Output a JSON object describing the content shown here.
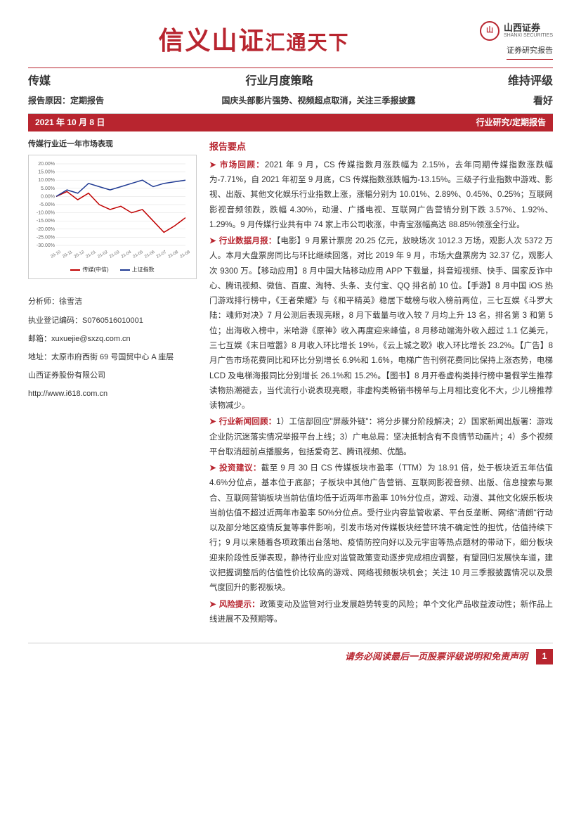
{
  "header": {
    "banner_main": "信义山证",
    "banner_sub": "汇通天下",
    "logo_cn": "山西证券",
    "logo_en": "SHANXI SECURITIES",
    "report_label": "证券研究报告"
  },
  "title_row": {
    "category": "传媒",
    "mid": "行业月度策略",
    "rating": "维持评级"
  },
  "subtitle_row": {
    "reason": "报告原因：定期报告",
    "subtitle": "国庆头部影片强势、视频超点取消，关注三季报披露",
    "outlook": "看好"
  },
  "redbar": {
    "date": "2021 年 10 月 8 日",
    "type": "行业研究/定期报告"
  },
  "sidebar": {
    "chart_title": "传媒行业近一年市场表现",
    "chart": {
      "type": "line",
      "y_ticks": [
        "20.00%",
        "15.00%",
        "10.00%",
        "5.00%",
        "0.00%",
        "-5.00%",
        "-10.00%",
        "-15.00%",
        "-20.00%",
        "-25.00%",
        "-30.00%"
      ],
      "x_ticks": [
        "20-10",
        "20-11",
        "20-12",
        "21-01",
        "21-02",
        "21-03",
        "21-04",
        "21-05",
        "21-06",
        "21-07",
        "21-08",
        "21-09"
      ],
      "series": [
        {
          "name": "传媒(中信)",
          "color": "#c00000",
          "data": [
            0,
            3,
            -2,
            2,
            -5,
            -8,
            -6,
            -10,
            -8,
            -15,
            -22,
            -18,
            -13
          ]
        },
        {
          "name": "上证指数",
          "color": "#1f3a93",
          "data": [
            0,
            4,
            2,
            8,
            6,
            4,
            6,
            8,
            10,
            6,
            8,
            9,
            10
          ]
        }
      ],
      "y_min": -30,
      "y_max": 20,
      "grid_color": "#dddddd",
      "background": "#ffffff",
      "axis_fontsize": 7
    },
    "legend_media": "传媒(中信)",
    "legend_index": "上证指数",
    "analyst_name_label": "分析师：",
    "analyst_name": "徐雪洁",
    "license_label": "执业登记编码：",
    "license": "S0760516010001",
    "email_label": "邮箱：",
    "email": "xuxuejie@sxzq.com.cn",
    "address_label": "地址：",
    "address": "太原市府西街 69 号国贸中心 A 座层",
    "company": "山西证券股份有限公司",
    "website": "http://www.i618.com.cn"
  },
  "main": {
    "section_title": "报告要点",
    "points": [
      {
        "label": "市场回顾：",
        "text": "2021 年 9 月，CS 传媒指数月涨跌幅为 2.15%，去年同期传媒指数涨跌幅为-7.71%，自 2021 年初至 9 月底，CS 传媒指数涨跌幅为-13.15%。三级子行业指数中游戏、影视、出版、其他文化娱乐行业指数上涨，涨幅分别为 10.01%、2.89%、0.45%、0.25%；互联网影视音频领跌，跌幅 4.30%，动漫、广播电视、互联网广告营销分别下跌 3.57%、1.92%、1.29%。9 月传媒行业共有中 74 家上市公司收涨，中青宝涨幅高达 88.85%领涨全行业。"
      },
      {
        "label": "行业数据月报：",
        "text": "【电影】9 月累计票房 20.25 亿元，放映场次 1012.3 万场，观影人次 5372 万人。本月大盘票房同比与环比继续回落，对比 2019 年 9 月，市场大盘票房为 32.37 亿，观影人次 9300 万。【移动应用】8 月中国大陆移动应用 APP 下载量，抖音短视频、快手、国家反诈中心、腾讯视频、微信、百度、淘特、头条、支付宝、QQ 排名前 10 位。【手游】8 月中国 iOS 热门游戏排行榜中，《王者荣耀》与《和平精英》稳居下载榜与收入榜前两位，三七互娱《斗罗大陆：魂师对决》7 月公测后表现亮眼，8 月下载量与收入较 7 月均上升 13 名，排名第 3 和第 5 位；出海收入榜中，米哈游《原神》收入再度迎来峰值，8 月移动端海外收入超过 1.1 亿美元，三七互娱《末日喧嚣》8 月收入环比增长 19%，《云上城之歌》收入环比增长 23.2%。【广告】8 月广告市场花费同比和环比分别增长 6.9%和 1.6%，电梯广告刊例花费同比保持上涨态势，电梯 LCD 及电梯海报同比分别增长 26.1%和 15.2%。【图书】8 月开卷虚构类排行榜中暑假学生推荐读物热潮褪去，当代流行小说表现亮眼，非虚构类畅销书榜单与上月相比变化不大，少儿榜推荐读物减少。"
      },
      {
        "label": "行业新闻回顾：",
        "text": "1）工信部回应\"屏蔽外链\"：将分步骤分阶段解决；2）国家新闻出版署：游戏企业防沉迷落实情况举报平台上线；3）广电总局：坚决抵制含有不良情节动画片；4）多个视频平台取消超前点播服务，包括爱奇艺、腾讯视频、优酷。"
      },
      {
        "label": "投资建议：",
        "text": "截至 9 月 30 日 CS 传媒板块市盈率（TTM）为 18.91 倍，处于板块近五年估值 4.6%分位点，基本位于底部；子板块中其他广告营销、互联网影视音频、出版、信息搜索与聚合、互联网营销板块当前估值均低于近两年市盈率 10%分位点，游戏、动漫、其他文化娱乐板块当前估值不超过近两年市盈率 50%分位点。受行业内容监管收紧、平台反垄断、网络\"清朗\"行动以及部分地区疫情反复等事件影响，引发市场对传媒板块经营环境不确定性的担忧，估值持续下行；9 月以来随着各项政策出台落地、疫情防控向好以及元宇宙等热点题材的带动下，细分板块迎来阶段性反弹表现，静待行业应对监管政策变动逐步完成相应调整，有望回归发展快车道，建议把握调整后的估值性价比较高的游戏、网络视频板块机会；关注 10 月三季报披露情况以及景气度回升的影视板块。"
      },
      {
        "label": "风险提示：",
        "text": "政策变动及监管对行业发展趋势转变的风险；单个文化产品收益波动性；新作品上线进展不及预期等。"
      }
    ]
  },
  "footer": {
    "disclaimer": "请务必阅读最后一页股票评级说明和免责声明",
    "page": "1"
  }
}
